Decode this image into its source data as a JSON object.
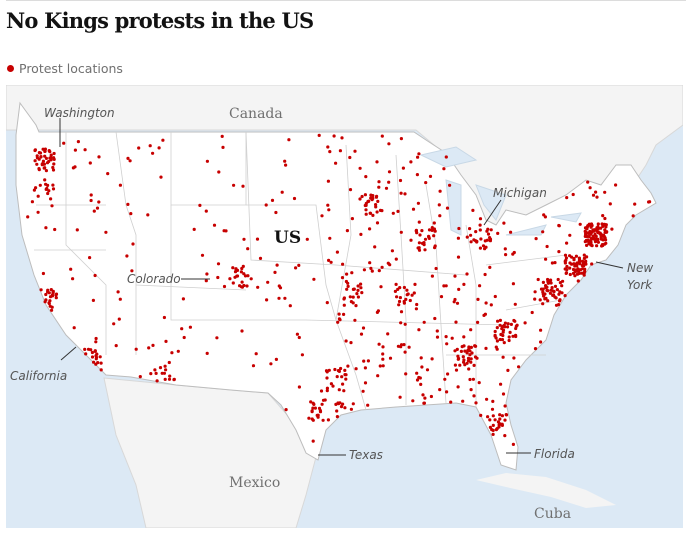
{
  "title": "No Kings protests in the US",
  "legend": {
    "label": "Protest locations",
    "color": "#c70000"
  },
  "colors": {
    "water": "#dce9f5",
    "us_land": "#ffffff",
    "other_land": "#f4f4f4",
    "dot": "#c70000",
    "border": "#bdbdbd"
  },
  "map": {
    "countries": {
      "canada": "Canada",
      "us": "US",
      "mexico": "Mexico",
      "cuba": "Cuba"
    },
    "annotations": {
      "washington": "Washington",
      "colorado": "Colorado",
      "california": "California",
      "michigan": "Michigan",
      "new_york_1": "New",
      "new_york_2": "York",
      "texas": "Texas",
      "florida": "Florida"
    }
  }
}
